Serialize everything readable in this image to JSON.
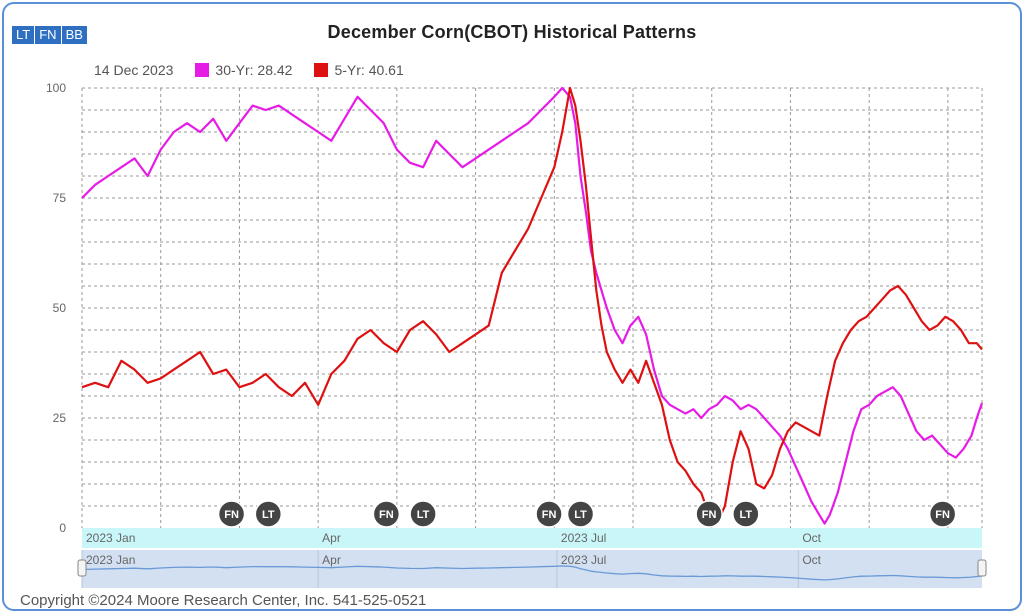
{
  "toolbar": {
    "lt_label": "LT",
    "fn_label": "FN",
    "bb_label": "BB"
  },
  "legend": {
    "date": "14 Dec 2023",
    "series30_label": "30-Yr: 28.42",
    "series5_label": "5-Yr: 40.61"
  },
  "copyright": "Copyright ©2024 Moore Research Center, Inc. 541-525-0521",
  "chart_data": {
    "type": "line",
    "title": "December Corn(CBOT) Historical Patterns",
    "xlabel": "",
    "ylabel": "",
    "ylim": [
      0,
      100
    ],
    "yticks": [
      0,
      25,
      50,
      75,
      100
    ],
    "x_ticks": [
      {
        "label": "2023 Jan",
        "day": 0
      },
      {
        "label": "Apr",
        "day": 90
      },
      {
        "label": "2023 Jul",
        "day": 181
      },
      {
        "label": "Oct",
        "day": 273
      }
    ],
    "x_range_days": [
      0,
      343
    ],
    "grid": true,
    "legend_position": "top-left",
    "series": [
      {
        "name": "30-Yr: 28.42",
        "color": "#e61ce6",
        "points": [
          [
            0,
            75
          ],
          [
            5,
            78
          ],
          [
            10,
            80
          ],
          [
            15,
            82
          ],
          [
            20,
            84
          ],
          [
            25,
            80
          ],
          [
            30,
            86
          ],
          [
            35,
            90
          ],
          [
            40,
            92
          ],
          [
            45,
            90
          ],
          [
            50,
            93
          ],
          [
            55,
            88
          ],
          [
            60,
            92
          ],
          [
            65,
            96
          ],
          [
            70,
            95
          ],
          [
            75,
            96
          ],
          [
            80,
            94
          ],
          [
            85,
            92
          ],
          [
            90,
            90
          ],
          [
            95,
            88
          ],
          [
            100,
            93
          ],
          [
            105,
            98
          ],
          [
            110,
            95
          ],
          [
            115,
            92
          ],
          [
            120,
            86
          ],
          [
            125,
            83
          ],
          [
            130,
            82
          ],
          [
            135,
            88
          ],
          [
            140,
            85
          ],
          [
            145,
            82
          ],
          [
            150,
            84
          ],
          [
            155,
            86
          ],
          [
            160,
            88
          ],
          [
            165,
            90
          ],
          [
            170,
            92
          ],
          [
            175,
            95
          ],
          [
            180,
            98
          ],
          [
            183,
            100
          ],
          [
            186,
            98
          ],
          [
            188,
            92
          ],
          [
            190,
            80
          ],
          [
            192,
            72
          ],
          [
            194,
            63
          ],
          [
            196,
            58
          ],
          [
            198,
            54
          ],
          [
            200,
            50
          ],
          [
            203,
            45
          ],
          [
            206,
            42
          ],
          [
            209,
            46
          ],
          [
            212,
            48
          ],
          [
            215,
            44
          ],
          [
            218,
            36
          ],
          [
            221,
            30
          ],
          [
            224,
            28
          ],
          [
            227,
            27
          ],
          [
            230,
            26
          ],
          [
            233,
            27
          ],
          [
            236,
            25
          ],
          [
            239,
            27
          ],
          [
            242,
            28
          ],
          [
            245,
            30
          ],
          [
            248,
            29
          ],
          [
            251,
            27
          ],
          [
            254,
            28
          ],
          [
            257,
            27
          ],
          [
            260,
            25
          ],
          [
            263,
            23
          ],
          [
            266,
            21
          ],
          [
            269,
            18
          ],
          [
            272,
            14
          ],
          [
            275,
            10
          ],
          [
            278,
            6
          ],
          [
            281,
            3
          ],
          [
            283,
            1
          ],
          [
            285,
            3
          ],
          [
            288,
            8
          ],
          [
            291,
            15
          ],
          [
            294,
            22
          ],
          [
            297,
            27
          ],
          [
            300,
            28
          ],
          [
            303,
            30
          ],
          [
            306,
            31
          ],
          [
            309,
            32
          ],
          [
            312,
            30
          ],
          [
            315,
            26
          ],
          [
            318,
            22
          ],
          [
            321,
            20
          ],
          [
            324,
            21
          ],
          [
            327,
            19
          ],
          [
            330,
            17
          ],
          [
            333,
            16
          ],
          [
            336,
            18
          ],
          [
            339,
            21
          ],
          [
            341,
            25
          ],
          [
            343,
            28.4
          ]
        ]
      },
      {
        "name": "5-Yr: 40.61",
        "color": "#dd1111",
        "points": [
          [
            0,
            32
          ],
          [
            5,
            33
          ],
          [
            10,
            32
          ],
          [
            15,
            38
          ],
          [
            20,
            36
          ],
          [
            25,
            33
          ],
          [
            30,
            34
          ],
          [
            35,
            36
          ],
          [
            40,
            38
          ],
          [
            45,
            40
          ],
          [
            50,
            35
          ],
          [
            55,
            36
          ],
          [
            60,
            32
          ],
          [
            65,
            33
          ],
          [
            70,
            35
          ],
          [
            75,
            32
          ],
          [
            80,
            30
          ],
          [
            85,
            33
          ],
          [
            90,
            28
          ],
          [
            95,
            35
          ],
          [
            100,
            38
          ],
          [
            105,
            43
          ],
          [
            110,
            45
          ],
          [
            115,
            42
          ],
          [
            120,
            40
          ],
          [
            125,
            45
          ],
          [
            130,
            47
          ],
          [
            135,
            44
          ],
          [
            140,
            40
          ],
          [
            145,
            42
          ],
          [
            150,
            44
          ],
          [
            155,
            46
          ],
          [
            160,
            58
          ],
          [
            165,
            63
          ],
          [
            170,
            68
          ],
          [
            175,
            75
          ],
          [
            180,
            82
          ],
          [
            183,
            90
          ],
          [
            186,
            100
          ],
          [
            188,
            96
          ],
          [
            190,
            88
          ],
          [
            192,
            78
          ],
          [
            194,
            66
          ],
          [
            196,
            54
          ],
          [
            198,
            46
          ],
          [
            200,
            40
          ],
          [
            203,
            36
          ],
          [
            206,
            33
          ],
          [
            209,
            36
          ],
          [
            212,
            33
          ],
          [
            215,
            38
          ],
          [
            218,
            33
          ],
          [
            221,
            28
          ],
          [
            224,
            20
          ],
          [
            227,
            15
          ],
          [
            230,
            13
          ],
          [
            233,
            10
          ],
          [
            236,
            8
          ],
          [
            239,
            3
          ],
          [
            242,
            1
          ],
          [
            245,
            5
          ],
          [
            248,
            15
          ],
          [
            251,
            22
          ],
          [
            254,
            18
          ],
          [
            257,
            10
          ],
          [
            260,
            9
          ],
          [
            263,
            12
          ],
          [
            266,
            18
          ],
          [
            269,
            22
          ],
          [
            272,
            24
          ],
          [
            275,
            23
          ],
          [
            278,
            22
          ],
          [
            281,
            21
          ],
          [
            284,
            30
          ],
          [
            287,
            38
          ],
          [
            290,
            42
          ],
          [
            293,
            45
          ],
          [
            296,
            47
          ],
          [
            299,
            48
          ],
          [
            302,
            50
          ],
          [
            305,
            52
          ],
          [
            308,
            54
          ],
          [
            311,
            55
          ],
          [
            314,
            53
          ],
          [
            317,
            50
          ],
          [
            320,
            47
          ],
          [
            323,
            45
          ],
          [
            326,
            46
          ],
          [
            329,
            48
          ],
          [
            332,
            47
          ],
          [
            335,
            45
          ],
          [
            338,
            42
          ],
          [
            341,
            42
          ],
          [
            343,
            40.6
          ]
        ]
      }
    ],
    "markers": [
      {
        "label": "FN",
        "day": 57
      },
      {
        "label": "LT",
        "day": 71
      },
      {
        "label": "FN",
        "day": 116
      },
      {
        "label": "LT",
        "day": 130
      },
      {
        "label": "FN",
        "day": 178
      },
      {
        "label": "LT",
        "day": 190
      },
      {
        "label": "FN",
        "day": 239
      },
      {
        "label": "LT",
        "day": 253
      },
      {
        "label": "FN",
        "day": 328
      }
    ],
    "navigator": {
      "x_ticks": [
        {
          "label": "2023 Jan",
          "day": 0
        },
        {
          "label": "Apr",
          "day": 90
        },
        {
          "label": "2023 Jul",
          "day": 181
        },
        {
          "label": "Oct",
          "day": 273
        }
      ]
    }
  },
  "colors": {
    "accent": "#2f6fc1",
    "series30": "#e61ce6",
    "series5": "#dd1111",
    "navigator_band": "#c9f6f8",
    "navigator_bg": "#d3e0f1",
    "navigator_line": "#6a9ad6"
  }
}
